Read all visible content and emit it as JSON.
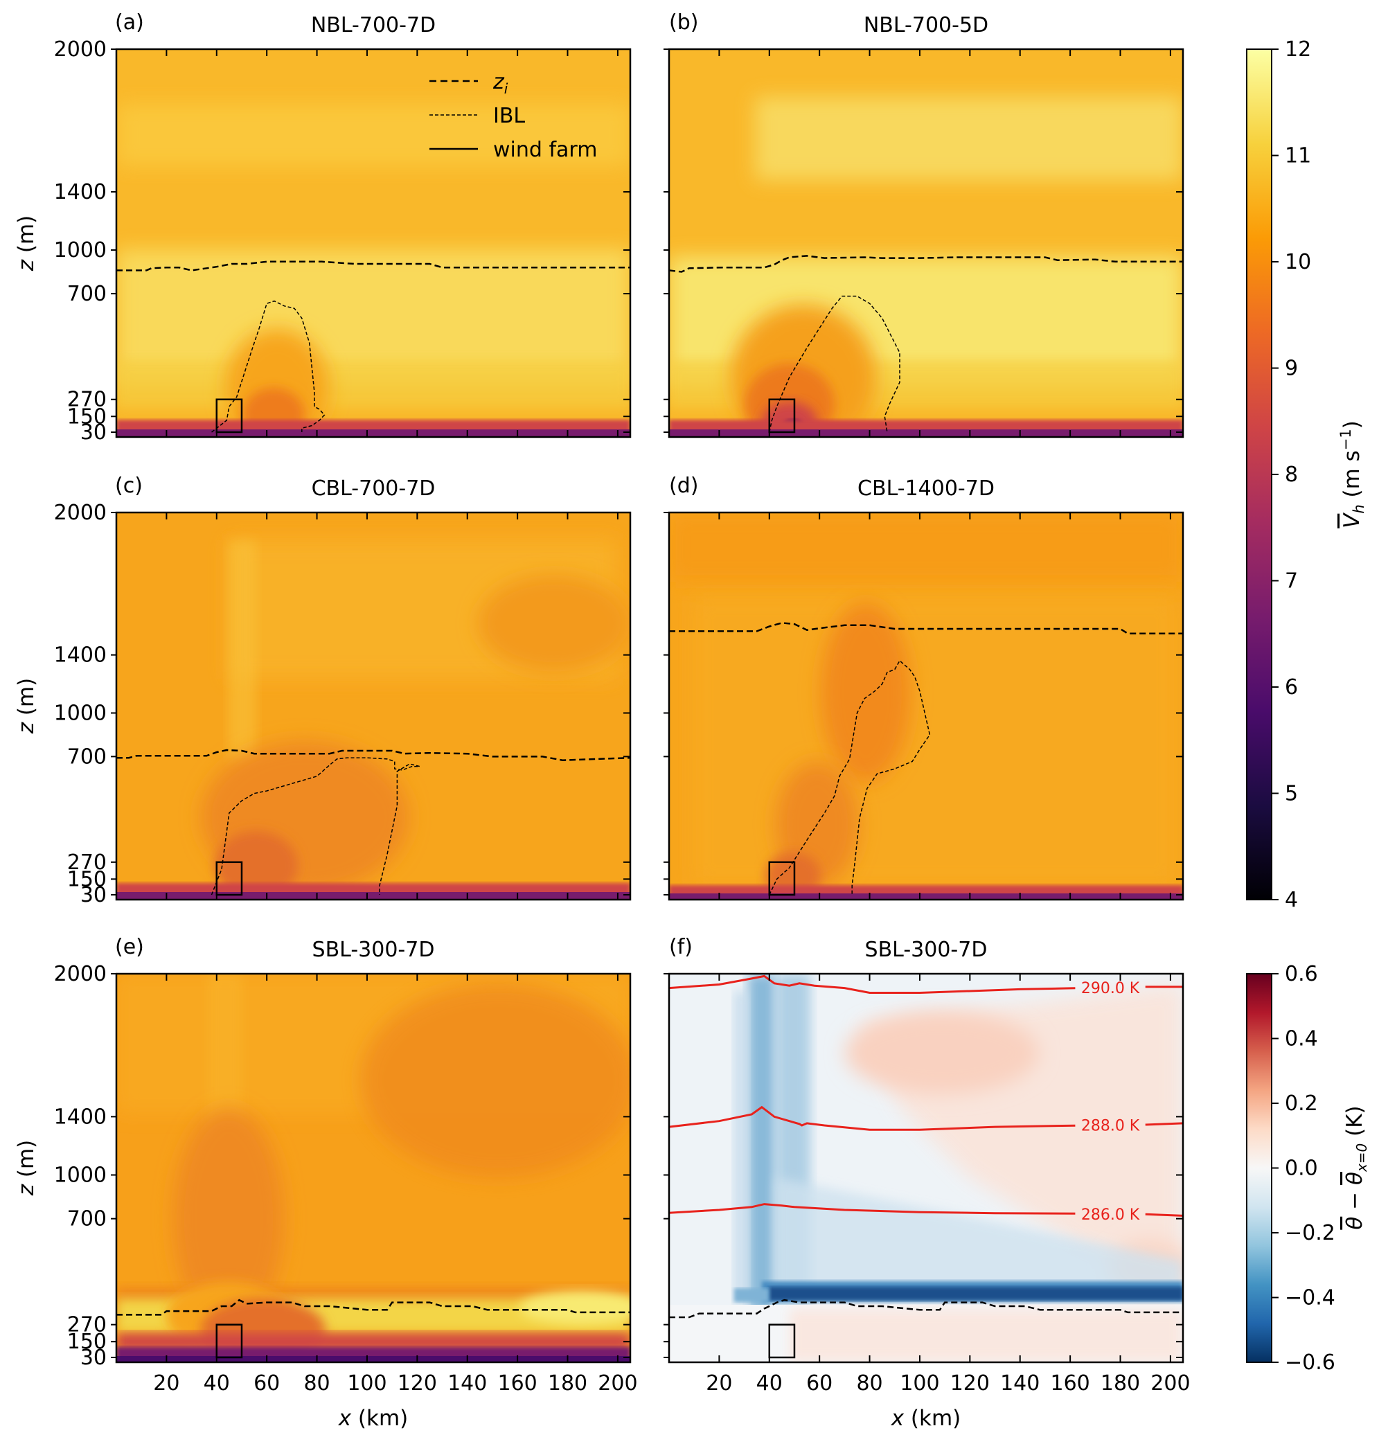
{
  "chart_data": {
    "type": "heatmap",
    "colors": {
      "inferno_stops": [
        "#000004",
        "#1b0c41",
        "#4a0c6b",
        "#781c6d",
        "#a52c60",
        "#cf4446",
        "#ed6925",
        "#fb9b06",
        "#f7d13d",
        "#fcffa4"
      ],
      "rdbu_stops": [
        "#053061",
        "#2166ac",
        "#4393c3",
        "#92c5de",
        "#d1e5f0",
        "#f7f7f7",
        "#fddbc7",
        "#f4a582",
        "#d6604d",
        "#b2182b",
        "#67001f"
      ],
      "isotherm": "#e8221c"
    },
    "x_axis": {
      "label": "x (km)",
      "label_italic": "x",
      "label_rest": " (km)",
      "range": [
        0,
        205
      ],
      "ticks": [
        20,
        40,
        60,
        80,
        100,
        120,
        140,
        160,
        180,
        200
      ],
      "tick_labels": [
        "20",
        "40",
        "60",
        "80",
        "100",
        "120",
        "140",
        "160",
        "180",
        "200"
      ]
    },
    "y_axis": {
      "label": "z (m)",
      "label_italic": "z",
      "label_rest": " (m)",
      "scale": "stretched (non-linear)",
      "ticks": [
        30,
        150,
        270,
        700,
        1000,
        1400,
        2000
      ],
      "tick_labels": [
        "30",
        "150",
        "270",
        "700",
        "1000",
        "1400",
        "2000"
      ]
    },
    "legend": {
      "entries": [
        {
          "label": "z_i",
          "label_main": "z",
          "label_sub": "i",
          "style": "dashed"
        },
        {
          "label": "IBL",
          "style": "fine-dashed"
        },
        {
          "label": "wind farm",
          "style": "solid"
        }
      ]
    },
    "wind_farm": {
      "x_range": [
        40,
        50
      ],
      "z_range": [
        30,
        270
      ]
    },
    "panels": [
      {
        "id": "a",
        "letter": "(a)",
        "title": "NBL-700-7D",
        "field": "Vh",
        "zi": [
          [
            0,
            860
          ],
          [
            12,
            860
          ],
          [
            14,
            875
          ],
          [
            20,
            880
          ],
          [
            25,
            880
          ],
          [
            30,
            860
          ],
          [
            36,
            875
          ],
          [
            40,
            885
          ],
          [
            46,
            905
          ],
          [
            52,
            905
          ],
          [
            60,
            920
          ],
          [
            82,
            920
          ],
          [
            95,
            905
          ],
          [
            125,
            905
          ],
          [
            130,
            880
          ],
          [
            160,
            880
          ],
          [
            175,
            880
          ],
          [
            205,
            880
          ]
        ],
        "ibl": [
          [
            38,
            30
          ],
          [
            44,
            120
          ],
          [
            45,
            220
          ],
          [
            48,
            280
          ],
          [
            54,
            470
          ],
          [
            57,
            560
          ],
          [
            60,
            660
          ],
          [
            63,
            670
          ],
          [
            67,
            650
          ],
          [
            71,
            640
          ],
          [
            74,
            600
          ],
          [
            77,
            500
          ],
          [
            79,
            300
          ],
          [
            79,
            220
          ],
          [
            81,
            200
          ],
          [
            83,
            160
          ],
          [
            81,
            120
          ],
          [
            78,
            80
          ],
          [
            74,
            60
          ],
          [
            74,
            30
          ]
        ]
      },
      {
        "id": "b",
        "letter": "(b)",
        "title": "NBL-700-5D",
        "field": "Vh",
        "zi": [
          [
            0,
            860
          ],
          [
            5,
            850
          ],
          [
            8,
            875
          ],
          [
            22,
            880
          ],
          [
            38,
            880
          ],
          [
            42,
            900
          ],
          [
            45,
            930
          ],
          [
            48,
            950
          ],
          [
            55,
            960
          ],
          [
            62,
            945
          ],
          [
            78,
            950
          ],
          [
            85,
            945
          ],
          [
            100,
            945
          ],
          [
            115,
            950
          ],
          [
            150,
            950
          ],
          [
            155,
            930
          ],
          [
            170,
            935
          ],
          [
            178,
            920
          ],
          [
            205,
            920
          ]
        ],
        "ibl": [
          [
            40,
            30
          ],
          [
            41,
            120
          ],
          [
            43,
            220
          ],
          [
            48,
            360
          ],
          [
            55,
            480
          ],
          [
            60,
            560
          ],
          [
            65,
            640
          ],
          [
            69,
            690
          ],
          [
            75,
            690
          ],
          [
            80,
            660
          ],
          [
            85,
            600
          ],
          [
            88,
            540
          ],
          [
            92,
            460
          ],
          [
            92,
            340
          ],
          [
            88,
            240
          ],
          [
            86,
            150
          ],
          [
            87,
            30
          ]
        ]
      },
      {
        "id": "c",
        "letter": "(c)",
        "title": "CBL-700-7D",
        "field": "Vh",
        "zi": [
          [
            0,
            695
          ],
          [
            5,
            695
          ],
          [
            8,
            705
          ],
          [
            36,
            705
          ],
          [
            40,
            730
          ],
          [
            44,
            745
          ],
          [
            50,
            740
          ],
          [
            55,
            720
          ],
          [
            85,
            720
          ],
          [
            90,
            740
          ],
          [
            110,
            740
          ],
          [
            115,
            720
          ],
          [
            125,
            725
          ],
          [
            140,
            720
          ],
          [
            150,
            700
          ],
          [
            170,
            700
          ],
          [
            178,
            685
          ],
          [
            205,
            695
          ]
        ],
        "ibl": [
          [
            38,
            30
          ],
          [
            42,
            220
          ],
          [
            45,
            470
          ],
          [
            50,
            520
          ],
          [
            55,
            550
          ],
          [
            60,
            560
          ],
          [
            70,
            590
          ],
          [
            80,
            620
          ],
          [
            85,
            665
          ],
          [
            88,
            690
          ],
          [
            92,
            695
          ],
          [
            100,
            695
          ],
          [
            108,
            690
          ],
          [
            111,
            680
          ],
          [
            111,
            650
          ],
          [
            114,
            645
          ],
          [
            118,
            660
          ],
          [
            121,
            660
          ],
          [
            117,
            670
          ],
          [
            112,
            640
          ],
          [
            112,
            500
          ],
          [
            108,
            300
          ],
          [
            105,
            100
          ],
          [
            105,
            30
          ]
        ]
      },
      {
        "id": "d",
        "letter": "(d)",
        "title": "CBL-1400-7D",
        "field": "Vh",
        "zi": [
          [
            0,
            1500
          ],
          [
            35,
            1500
          ],
          [
            40,
            1520
          ],
          [
            45,
            1535
          ],
          [
            50,
            1530
          ],
          [
            55,
            1505
          ],
          [
            62,
            1515
          ],
          [
            70,
            1525
          ],
          [
            80,
            1525
          ],
          [
            90,
            1510
          ],
          [
            160,
            1510
          ],
          [
            180,
            1510
          ],
          [
            183,
            1490
          ],
          [
            205,
            1490
          ]
        ],
        "ibl": [
          [
            40,
            30
          ],
          [
            43,
            150
          ],
          [
            48,
            230
          ],
          [
            55,
            360
          ],
          [
            62,
            470
          ],
          [
            66,
            540
          ],
          [
            68,
            620
          ],
          [
            72,
            690
          ],
          [
            75,
            1000
          ],
          [
            78,
            1100
          ],
          [
            82,
            1150
          ],
          [
            85,
            1200
          ],
          [
            87,
            1280
          ],
          [
            90,
            1300
          ],
          [
            92,
            1360
          ],
          [
            94,
            1330
          ],
          [
            96,
            1300
          ],
          [
            98,
            1250
          ],
          [
            100,
            1150
          ],
          [
            102,
            1000
          ],
          [
            104,
            850
          ],
          [
            100,
            750
          ],
          [
            97,
            680
          ],
          [
            90,
            650
          ],
          [
            83,
            630
          ],
          [
            79,
            570
          ],
          [
            76,
            450
          ],
          [
            74,
            250
          ],
          [
            73,
            100
          ],
          [
            73,
            30
          ]
        ]
      },
      {
        "id": "e",
        "letter": "(e)",
        "title": "SBL-300-7D",
        "field": "Vh",
        "zi": [
          [
            0,
            310
          ],
          [
            18,
            310
          ],
          [
            20,
            325
          ],
          [
            38,
            325
          ],
          [
            42,
            345
          ],
          [
            46,
            345
          ],
          [
            49,
            370
          ],
          [
            52,
            355
          ],
          [
            60,
            360
          ],
          [
            70,
            360
          ],
          [
            75,
            345
          ],
          [
            85,
            345
          ],
          [
            100,
            330
          ],
          [
            108,
            330
          ],
          [
            110,
            360
          ],
          [
            125,
            360
          ],
          [
            130,
            345
          ],
          [
            142,
            345
          ],
          [
            148,
            330
          ],
          [
            180,
            330
          ],
          [
            183,
            320
          ],
          [
            205,
            320
          ]
        ],
        "ibl": []
      },
      {
        "id": "f",
        "letter": "(f)",
        "title": "SBL-300-7D",
        "field": "dtheta",
        "zi": [
          [
            0,
            300
          ],
          [
            8,
            300
          ],
          [
            12,
            315
          ],
          [
            35,
            315
          ],
          [
            38,
            335
          ],
          [
            40,
            345
          ],
          [
            43,
            360
          ],
          [
            46,
            370
          ],
          [
            52,
            360
          ],
          [
            60,
            360
          ],
          [
            70,
            360
          ],
          [
            75,
            345
          ],
          [
            85,
            345
          ],
          [
            100,
            330
          ],
          [
            108,
            330
          ],
          [
            110,
            360
          ],
          [
            125,
            360
          ],
          [
            130,
            345
          ],
          [
            142,
            345
          ],
          [
            148,
            330
          ],
          [
            180,
            330
          ],
          [
            183,
            320
          ],
          [
            205,
            320
          ]
        ],
        "ibl": [],
        "isotherms": [
          {
            "label": "286.0 K",
            "points": [
              [
                0,
                740
              ],
              [
                20,
                760
              ],
              [
                33,
                780
              ],
              [
                38,
                800
              ],
              [
                45,
                790
              ],
              [
                50,
                780
              ],
              [
                70,
                760
              ],
              [
                100,
                745
              ],
              [
                130,
                738
              ],
              [
                165,
                735
              ],
              [
                190,
                730
              ],
              [
                205,
                720
              ]
            ]
          },
          {
            "label": "288.0 K",
            "points": [
              [
                0,
                1330
              ],
              [
                20,
                1370
              ],
              [
                33,
                1410
              ],
              [
                37,
                1440
              ],
              [
                42,
                1400
              ],
              [
                48,
                1370
              ],
              [
                52,
                1350
              ],
              [
                53,
                1340
              ],
              [
                55,
                1355
              ],
              [
                62,
                1340
              ],
              [
                80,
                1310
              ],
              [
                100,
                1310
              ],
              [
                130,
                1330
              ],
              [
                165,
                1340
              ],
              [
                190,
                1345
              ],
              [
                205,
                1355
              ]
            ]
          },
          {
            "label": "290.0 K",
            "points": [
              [
                0,
                1940
              ],
              [
                20,
                1955
              ],
              [
                33,
                1980
              ],
              [
                38,
                1990
              ],
              [
                42,
                1960
              ],
              [
                48,
                1950
              ],
              [
                52,
                1960
              ],
              [
                58,
                1950
              ],
              [
                70,
                1940
              ],
              [
                80,
                1920
              ],
              [
                100,
                1920
              ],
              [
                140,
                1935
              ],
              [
                165,
                1940
              ],
              [
                190,
                1945
              ],
              [
                205,
                1945
              ]
            ]
          }
        ]
      }
    ],
    "colorbars": [
      {
        "id": "vh",
        "label": "Vh (m s^-1)",
        "label_main": "V",
        "label_sub": "h",
        "label_unit": " (m s",
        "label_exp": "−1",
        "label_close": ")",
        "range": [
          4,
          12
        ],
        "ticks": [
          4,
          5,
          6,
          7,
          8,
          9,
          10,
          11,
          12
        ],
        "tick_labels": [
          "4",
          "5",
          "6",
          "7",
          "8",
          "9",
          "10",
          "11",
          "12"
        ]
      },
      {
        "id": "dtheta",
        "label": "θ − θx=0 (K)",
        "label_theta": "θ",
        "label_minus": " − ",
        "label_sub": "x=0",
        "label_unit": " (K)",
        "range": [
          -0.6,
          0.6
        ],
        "ticks": [
          -0.6,
          -0.4,
          -0.2,
          0.0,
          0.2,
          0.4,
          0.6
        ],
        "tick_labels": [
          "−0.6",
          "−0.4",
          "−0.2",
          "0.0",
          "0.2",
          "0.4",
          "0.6"
        ]
      }
    ]
  }
}
